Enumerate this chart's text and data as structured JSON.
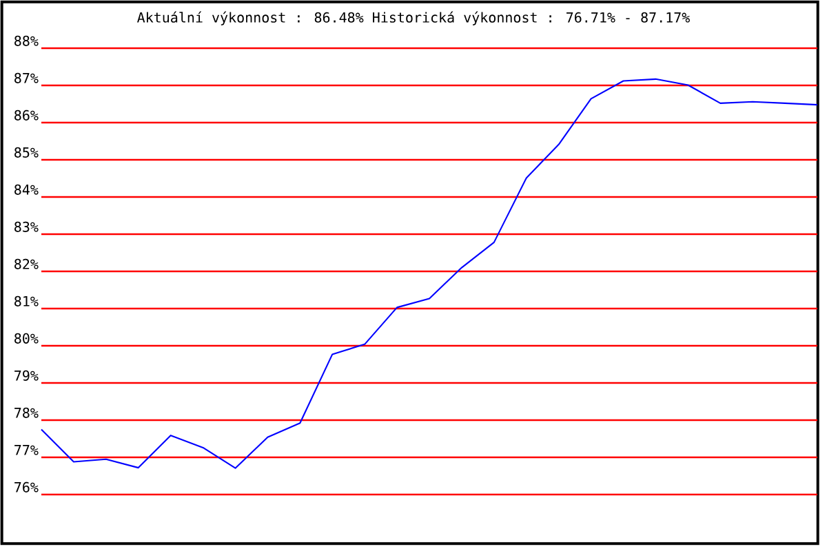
{
  "chart_data": {
    "type": "line",
    "title": "Aktuální výkonnost : 86.48%  Historická výkonnost : 76.71% - 87.17%",
    "categories": [
      null,
      null,
      null,
      null,
      null,
      null,
      null,
      null,
      null,
      null,
      null,
      null,
      null,
      null,
      null,
      null,
      null,
      null,
      null,
      null,
      null,
      null,
      null,
      null,
      null
    ],
    "series": [
      {
        "color": "#0000ff",
        "values": [
          77.75,
          76.88,
          76.95,
          76.72,
          77.59,
          77.26,
          76.71,
          77.54,
          77.92,
          79.77,
          80.04,
          81.03,
          81.27,
          82.1,
          82.78,
          84.51,
          85.41,
          86.64,
          87.12,
          87.17,
          87.01,
          86.52,
          86.56,
          86.52,
          86.48
        ]
      }
    ],
    "ylim": [
      76,
      88
    ],
    "yticks": [
      {
        "value": 76,
        "label": "76%"
      },
      {
        "value": 77,
        "label": "77%"
      },
      {
        "value": 78,
        "label": "78%"
      },
      {
        "value": 79,
        "label": "79%"
      },
      {
        "value": 80,
        "label": "80%"
      },
      {
        "value": 81,
        "label": "81%"
      },
      {
        "value": 82,
        "label": "82%"
      },
      {
        "value": 83,
        "label": "83%"
      },
      {
        "value": 84,
        "label": "84%"
      },
      {
        "value": 85,
        "label": "85%"
      },
      {
        "value": 86,
        "label": "86%"
      },
      {
        "value": 87,
        "label": "87%"
      },
      {
        "value": 88,
        "label": "88%"
      }
    ],
    "grid": "y",
    "marker": "none",
    "line_style": "solid"
  }
}
